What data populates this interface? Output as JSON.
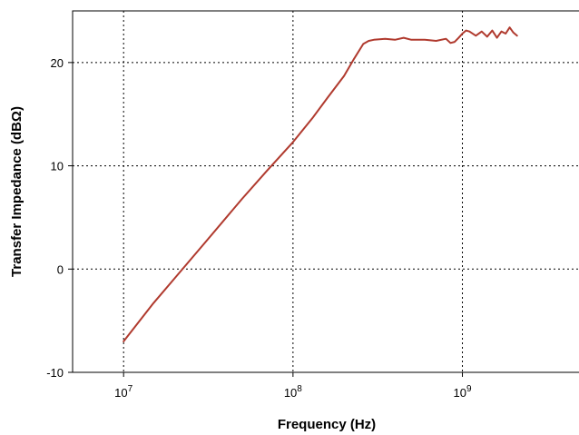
{
  "chart_data": {
    "type": "line",
    "title": "",
    "xlabel": "Frequency (Hz)",
    "ylabel": "Transfer Impedance (dBΩ)",
    "xscale": "log",
    "xlim": [
      5000000,
      5000000000
    ],
    "ylim": [
      -10,
      25
    ],
    "grid": true,
    "x_ticks": [
      {
        "value": 10000000,
        "base": "10",
        "exp": "7"
      },
      {
        "value": 100000000,
        "base": "10",
        "exp": "8"
      },
      {
        "value": 1000000000,
        "base": "10",
        "exp": "9"
      }
    ],
    "y_ticks": [
      {
        "value": -10,
        "label": "-10"
      },
      {
        "value": 0,
        "label": "0"
      },
      {
        "value": 10,
        "label": "10"
      },
      {
        "value": 20,
        "label": "20"
      }
    ],
    "series": [
      {
        "color": "#b03a2e",
        "x": [
          10000000,
          15000000,
          20000000,
          30000000,
          50000000,
          70000000,
          100000000,
          130000000,
          160000000,
          200000000,
          230000000,
          260000000,
          280000000,
          300000000,
          350000000,
          400000000,
          450000000,
          500000000,
          600000000,
          700000000,
          800000000,
          850000000,
          900000000,
          950000000,
          1000000000,
          1050000000,
          1100000000,
          1200000000,
          1300000000,
          1400000000,
          1500000000,
          1600000000,
          1700000000,
          1800000000,
          1900000000,
          2000000000,
          2100000000
        ],
        "y": [
          -7,
          -3.3,
          -0.9,
          2.5,
          6.8,
          9.5,
          12.3,
          14.6,
          16.6,
          18.7,
          20.4,
          21.8,
          22.1,
          22.2,
          22.3,
          22.2,
          22.4,
          22.2,
          22.2,
          22.1,
          22.3,
          21.9,
          22.0,
          22.4,
          22.8,
          23.1,
          23.0,
          22.6,
          23.0,
          22.5,
          23.1,
          22.4,
          23.0,
          22.8,
          23.4,
          22.9,
          22.6
        ]
      }
    ]
  }
}
